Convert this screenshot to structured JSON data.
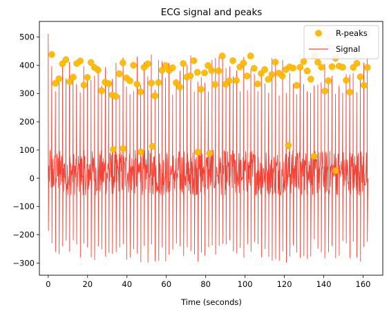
{
  "chart_data": {
    "type": "line",
    "title": "ECG signal and peaks",
    "xlabel": "Time (seconds)",
    "ylabel": "",
    "xlim": [
      -4.5,
      170
    ],
    "ylim": [
      -343,
      555
    ],
    "xticks": [
      0,
      20,
      40,
      60,
      80,
      100,
      120,
      140,
      160
    ],
    "yticks": [
      -300,
      -200,
      -100,
      0,
      100,
      200,
      300,
      400,
      500
    ],
    "grid": false,
    "legend": {
      "placement": "top-right",
      "entries": [
        "R-peaks",
        "Signal"
      ]
    },
    "colors": {
      "signal": "#f44336",
      "peaks": "#ffb900",
      "peaks_edge": "#f0a800"
    },
    "signal_summary": {
      "duration_s": 162.5,
      "initial_spike_max": 510,
      "initial_spike_min": -185,
      "baseline_band": [
        -60,
        100
      ],
      "spike_max_range": [
        290,
        440
      ],
      "spike_min_range": [
        -300,
        -215
      ]
    },
    "series": [
      {
        "name": "R-peaks",
        "type": "scatter",
        "x": [
          1.8,
          3.6,
          5.4,
          7.2,
          9.0,
          10.9,
          12.7,
          14.5,
          16.3,
          18.1,
          19.9,
          21.7,
          23.5,
          25.3,
          27.1,
          28.9,
          30.7,
          32.5,
          34.3,
          36.1,
          37.9,
          39.7,
          41.5,
          43.3,
          45.1,
          46.9,
          48.7,
          50.6,
          52.4,
          54.2,
          56.0,
          57.8,
          59.6,
          61.4,
          63.2,
          65.0,
          66.8,
          68.6,
          70.4,
          72.2,
          74.0,
          75.8,
          77.6,
          79.4,
          81.2,
          83.0,
          84.8,
          86.6,
          88.4,
          90.2,
          92.0,
          93.8,
          95.6,
          97.4,
          99.2,
          101.0,
          102.8,
          104.6,
          106.4,
          108.2,
          110.0,
          111.8,
          113.6,
          115.4,
          117.2,
          119.0,
          120.8,
          122.6,
          124.4,
          126.2,
          128.0,
          129.8,
          131.6,
          133.4,
          135.2,
          137.0,
          138.8,
          140.6,
          142.4,
          144.2,
          146.0,
          147.8,
          149.6,
          151.4,
          153.2,
          155.0,
          156.8,
          158.6,
          160.4,
          162.2,
          33.0,
          38.0,
          47.0,
          53.0,
          76.0,
          82.0,
          122.0,
          135.0,
          146.0
        ],
        "y": [
          438,
          336,
          352,
          405,
          420,
          342,
          358,
          406,
          415,
          330,
          357,
          410,
          392,
          383,
          310,
          340,
          335,
          295,
          290,
          370,
          409,
          355,
          345,
          400,
          333,
          306,
          393,
          405,
          337,
          292,
          339,
          382,
          399,
          382,
          391,
          338,
          323,
          406,
          358,
          363,
          416,
          375,
          315,
          373,
          399,
          382,
          332,
          380,
          433,
          333,
          345,
          416,
          346,
          394,
          408,
          362,
          433,
          389,
          334,
          371,
          385,
          350,
          367,
          411,
          372,
          362,
          385,
          394,
          390,
          329,
          393,
          413,
          380,
          351,
          433,
          411,
          393,
          309,
          345,
          395,
          425,
          397,
          393,
          347,
          305,
          392,
          407,
          359,
          329,
          392,
          102,
          105,
          93,
          113,
          92,
          88,
          116,
          78,
          27
        ]
      },
      {
        "name": "Signal",
        "type": "line",
        "note_values": "dense ECG trace rendered procedurally between the ranges in signal_summary"
      }
    ]
  }
}
